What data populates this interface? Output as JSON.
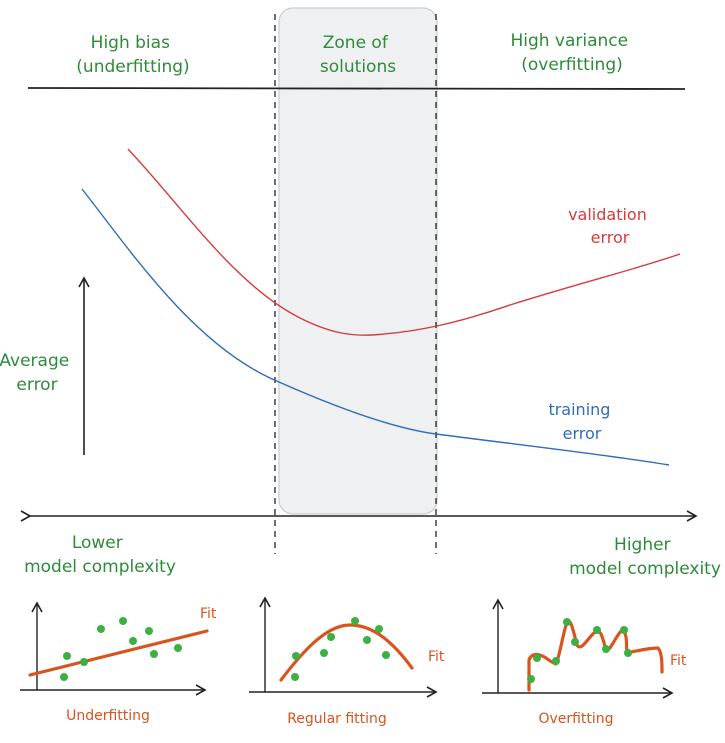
{
  "regions": {
    "left": [
      "High bias",
      "(underfitting)"
    ],
    "middle": [
      "Zone of",
      "solutions"
    ],
    "right": [
      "High variance",
      "(overfitting)"
    ]
  },
  "y_axis_label": [
    "Average",
    "error"
  ],
  "curves": {
    "validation": [
      "validation",
      "error"
    ],
    "training": [
      "training",
      "error"
    ]
  },
  "x_axis": {
    "left": [
      "Lower",
      "model complexity"
    ],
    "right": [
      "Higher",
      "model complexity"
    ]
  },
  "panels": {
    "underfitting": {
      "caption": "Underfitting",
      "fit_label": "Fit"
    },
    "regular": {
      "caption": "Regular fitting",
      "fit_label": "Fit"
    },
    "overfitting": {
      "caption": "Overfitting",
      "fit_label": "Fit"
    }
  },
  "colors": {
    "label_green": "#2e8b3a",
    "validation_red": "#d43c3c",
    "training_blue": "#2f6db6",
    "fit_orange": "#d9531e",
    "dot_green": "#3cb043",
    "zone_fill": "#eef0f2"
  }
}
